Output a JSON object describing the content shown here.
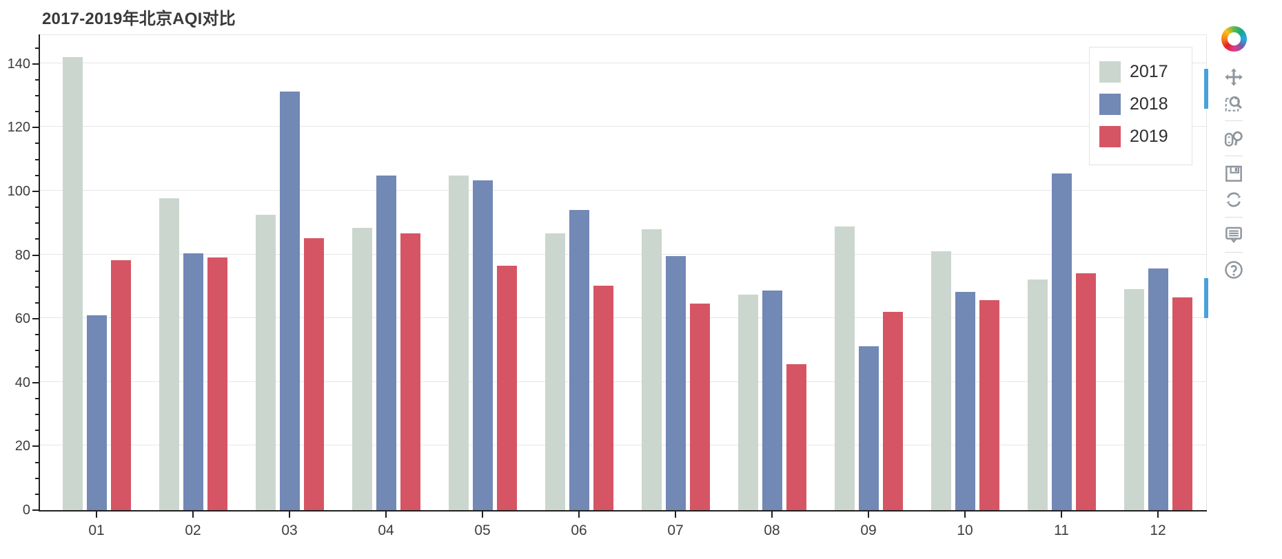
{
  "title": "2017-2019年北京AQI对比",
  "chart_data": {
    "type": "bar",
    "title": "2017-2019年北京AQI对比",
    "categories": [
      "01",
      "02",
      "03",
      "04",
      "05",
      "06",
      "07",
      "08",
      "09",
      "10",
      "11",
      "12"
    ],
    "series": [
      {
        "name": "2017",
        "color": "#cbd6cf",
        "values": [
          142.2,
          97.9,
          92.7,
          88.6,
          104.9,
          86.8,
          88.1,
          67.6,
          88.9,
          81.2,
          72.3,
          69.4
        ]
      },
      {
        "name": "2018",
        "color": "#7288b5",
        "values": [
          61.2,
          80.5,
          131.4,
          104.9,
          103.4,
          94.2,
          79.7,
          68.9,
          51.3,
          68.4,
          105.6,
          75.9
        ]
      },
      {
        "name": "2019",
        "color": "#d65564",
        "values": [
          78.5,
          79.2,
          85.4,
          86.9,
          76.7,
          70.4,
          64.9,
          45.8,
          62.3,
          65.8,
          74.2,
          66.8
        ]
      }
    ],
    "xlabel": "",
    "ylabel": "",
    "ylim": [
      0,
      149
    ],
    "yticks": [
      0,
      20,
      40,
      60,
      80,
      100,
      120,
      140
    ],
    "minor_tick_step": 5,
    "grid": "horizontal",
    "legend_position": "top-right"
  },
  "legend": {
    "items": [
      {
        "label": "2017",
        "color": "#cbd6cf"
      },
      {
        "label": "2018",
        "color": "#7288b5"
      },
      {
        "label": "2019",
        "color": "#d65564"
      }
    ]
  },
  "toolbar": {
    "logo": "bokeh-logo",
    "tools": [
      {
        "name": "pan",
        "active": true
      },
      {
        "name": "box-zoom",
        "active": false
      },
      {
        "name": "wheel-zoom",
        "active": false
      },
      {
        "name": "save",
        "active": false
      },
      {
        "name": "reset",
        "active": false
      },
      {
        "name": "hover",
        "active": true
      },
      {
        "name": "help",
        "active": false
      }
    ]
  },
  "colors": {
    "active_indicator": "#47a3da",
    "grid_line": "#e6e6e6",
    "axis_line": "#1f1f1f",
    "frame_line": "#e5e5e5"
  }
}
